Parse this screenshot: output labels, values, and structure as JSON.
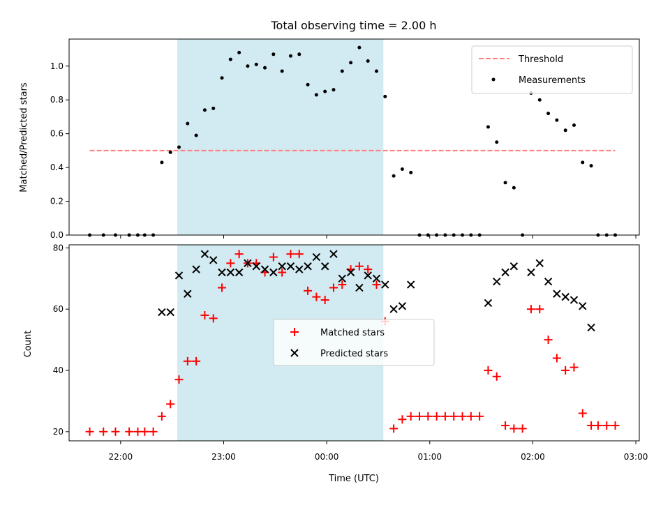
{
  "chart_data": [
    {
      "type": "scatter",
      "title": "Total observing time = 2.00 h",
      "xlabel": "",
      "ylabel": "Matched/Predicted stars",
      "xlim": [
        "21:30",
        "03:02"
      ],
      "ylim": [
        0,
        1.16
      ],
      "yticks": [
        "0.0",
        "0.2",
        "0.4",
        "0.6",
        "0.8",
        "1.0"
      ],
      "ytick_values": [
        0,
        0.2,
        0.4,
        0.6,
        0.8,
        1.0
      ],
      "shaded_interval": [
        "22:33",
        "00:33"
      ],
      "shade_color": "#add8e6",
      "legend_position": "upper right",
      "threshold": {
        "name": "Threshold",
        "value": 0.5,
        "x_range": [
          "21:42",
          "02:48"
        ],
        "color": "#ff7f7f",
        "style": "dashed"
      },
      "series": [
        {
          "name": "Measurements",
          "marker": "dot",
          "color": "#000000",
          "points": [
            [
              "21:42",
              0
            ],
            [
              "21:50",
              0
            ],
            [
              "21:57",
              0
            ],
            [
              "22:05",
              0
            ],
            [
              "22:10",
              0
            ],
            [
              "22:14",
              0
            ],
            [
              "22:19",
              0
            ],
            [
              "22:24",
              0.43
            ],
            [
              "22:29",
              0.49
            ],
            [
              "22:34",
              0.52
            ],
            [
              "22:39",
              0.66
            ],
            [
              "22:44",
              0.59
            ],
            [
              "22:49",
              0.74
            ],
            [
              "22:54",
              0.75
            ],
            [
              "22:59",
              0.93
            ],
            [
              "23:04",
              1.04
            ],
            [
              "23:09",
              1.08
            ],
            [
              "23:14",
              1.0
            ],
            [
              "23:19",
              1.01
            ],
            [
              "23:24",
              0.99
            ],
            [
              "23:29",
              1.07
            ],
            [
              "23:34",
              0.97
            ],
            [
              "23:39",
              1.06
            ],
            [
              "23:44",
              1.07
            ],
            [
              "23:49",
              0.89
            ],
            [
              "23:54",
              0.83
            ],
            [
              "23:59",
              0.85
            ],
            [
              "00:04",
              0.86
            ],
            [
              "00:09",
              0.97
            ],
            [
              "00:14",
              1.02
            ],
            [
              "00:19",
              1.11
            ],
            [
              "00:24",
              1.03
            ],
            [
              "00:29",
              0.97
            ],
            [
              "00:34",
              0.82
            ],
            [
              "00:39",
              0.35
            ],
            [
              "00:44",
              0.39
            ],
            [
              "00:49",
              0.37
            ],
            [
              "00:54",
              0
            ],
            [
              "00:59",
              0
            ],
            [
              "01:04",
              0
            ],
            [
              "01:09",
              0
            ],
            [
              "01:14",
              0
            ],
            [
              "01:19",
              0
            ],
            [
              "01:24",
              0
            ],
            [
              "01:29",
              0
            ],
            [
              "01:34",
              0.64
            ],
            [
              "01:39",
              0.55
            ],
            [
              "01:44",
              0.31
            ],
            [
              "01:49",
              0.28
            ],
            [
              "01:54",
              0
            ],
            [
              "01:59",
              0.84
            ],
            [
              "02:04",
              0.8
            ],
            [
              "02:09",
              0.72
            ],
            [
              "02:14",
              0.68
            ],
            [
              "02:19",
              0.62
            ],
            [
              "02:24",
              0.65
            ],
            [
              "02:29",
              0.43
            ],
            [
              "02:34",
              0.41
            ],
            [
              "02:38",
              0
            ],
            [
              "02:43",
              0
            ],
            [
              "02:48",
              0
            ]
          ]
        }
      ]
    },
    {
      "type": "scatter",
      "title": "",
      "xlabel": "Time (UTC)",
      "ylabel": "Count",
      "xlim": [
        "21:30",
        "03:02"
      ],
      "ylim": [
        17,
        81
      ],
      "xticks": [
        "22:00",
        "23:00",
        "00:00",
        "01:00",
        "02:00",
        "03:00"
      ],
      "yticks": [
        "20",
        "40",
        "60",
        "80"
      ],
      "ytick_values": [
        20,
        40,
        60,
        80
      ],
      "shaded_interval": [
        "22:33",
        "00:33"
      ],
      "shade_color": "#add8e6",
      "legend_position": "center",
      "series": [
        {
          "name": "Matched stars",
          "marker": "plus",
          "color": "#ff0000",
          "points": [
            [
              "21:42",
              20
            ],
            [
              "21:50",
              20
            ],
            [
              "21:57",
              20
            ],
            [
              "22:05",
              20
            ],
            [
              "22:10",
              20
            ],
            [
              "22:14",
              20
            ],
            [
              "22:19",
              20
            ],
            [
              "22:24",
              25
            ],
            [
              "22:29",
              29
            ],
            [
              "22:34",
              37
            ],
            [
              "22:39",
              43
            ],
            [
              "22:44",
              43
            ],
            [
              "22:49",
              58
            ],
            [
              "22:54",
              57
            ],
            [
              "22:59",
              67
            ],
            [
              "23:04",
              75
            ],
            [
              "23:09",
              78
            ],
            [
              "23:14",
              75
            ],
            [
              "23:19",
              75
            ],
            [
              "23:24",
              72
            ],
            [
              "23:29",
              77
            ],
            [
              "23:34",
              72
            ],
            [
              "23:39",
              78
            ],
            [
              "23:44",
              78
            ],
            [
              "23:49",
              66
            ],
            [
              "23:54",
              64
            ],
            [
              "23:59",
              63
            ],
            [
              "00:04",
              67
            ],
            [
              "00:09",
              68
            ],
            [
              "00:14",
              73
            ],
            [
              "00:19",
              74
            ],
            [
              "00:24",
              73
            ],
            [
              "00:29",
              68
            ],
            [
              "00:34",
              56
            ],
            [
              "00:39",
              21
            ],
            [
              "00:44",
              24
            ],
            [
              "00:49",
              25
            ],
            [
              "00:54",
              25
            ],
            [
              "00:59",
              25
            ],
            [
              "01:04",
              25
            ],
            [
              "01:09",
              25
            ],
            [
              "01:14",
              25
            ],
            [
              "01:19",
              25
            ],
            [
              "01:24",
              25
            ],
            [
              "01:29",
              25
            ],
            [
              "01:34",
              40
            ],
            [
              "01:39",
              38
            ],
            [
              "01:44",
              22
            ],
            [
              "01:49",
              21
            ],
            [
              "01:54",
              21
            ],
            [
              "01:59",
              60
            ],
            [
              "02:04",
              60
            ],
            [
              "02:09",
              50
            ],
            [
              "02:14",
              44
            ],
            [
              "02:19",
              40
            ],
            [
              "02:24",
              41
            ],
            [
              "02:29",
              26
            ],
            [
              "02:34",
              22
            ],
            [
              "02:38",
              22
            ],
            [
              "02:43",
              22
            ],
            [
              "02:48",
              22
            ]
          ]
        },
        {
          "name": "Predicted stars",
          "marker": "x",
          "color": "#000000",
          "points": [
            [
              "22:24",
              59
            ],
            [
              "22:29",
              59
            ],
            [
              "22:34",
              71
            ],
            [
              "22:39",
              65
            ],
            [
              "22:44",
              73
            ],
            [
              "22:49",
              78
            ],
            [
              "22:54",
              76
            ],
            [
              "22:59",
              72
            ],
            [
              "23:04",
              72
            ],
            [
              "23:09",
              72
            ],
            [
              "23:14",
              75
            ],
            [
              "23:19",
              74
            ],
            [
              "23:24",
              73
            ],
            [
              "23:29",
              72
            ],
            [
              "23:34",
              74
            ],
            [
              "23:39",
              74
            ],
            [
              "23:44",
              73
            ],
            [
              "23:49",
              74
            ],
            [
              "23:54",
              77
            ],
            [
              "23:59",
              74
            ],
            [
              "00:04",
              78
            ],
            [
              "00:09",
              70
            ],
            [
              "00:14",
              72
            ],
            [
              "00:19",
              67
            ],
            [
              "00:24",
              71
            ],
            [
              "00:29",
              70
            ],
            [
              "00:34",
              68
            ],
            [
              "00:39",
              60
            ],
            [
              "00:44",
              61
            ],
            [
              "00:49",
              68
            ],
            [
              "01:34",
              62
            ],
            [
              "01:39",
              69
            ],
            [
              "01:44",
              72
            ],
            [
              "01:49",
              74
            ],
            [
              "01:59",
              72
            ],
            [
              "02:04",
              75
            ],
            [
              "02:09",
              69
            ],
            [
              "02:14",
              65
            ],
            [
              "02:19",
              64
            ],
            [
              "02:24",
              63
            ],
            [
              "02:29",
              61
            ],
            [
              "02:34",
              54
            ]
          ]
        }
      ]
    }
  ]
}
